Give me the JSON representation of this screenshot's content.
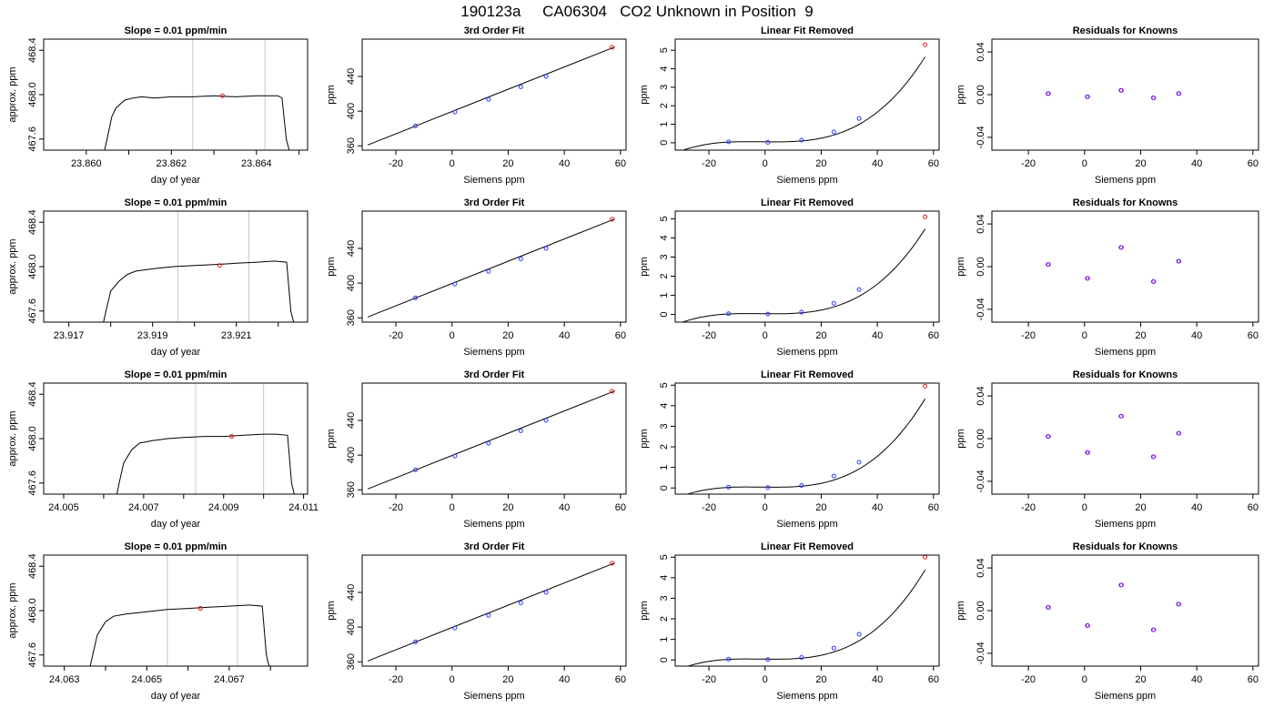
{
  "title": "190123a     CA06304   CO2 Unknown in Position  9",
  "chart_data": [
    {
      "row": 0,
      "col": 0,
      "type": "line",
      "title": "Slope =  0.01  ppm/min",
      "xlabel": "day of year",
      "ylabel": "approx. ppm",
      "xlim": [
        23.859,
        23.8652
      ],
      "ylim": [
        467.5,
        468.5
      ],
      "xticks": [
        23.86,
        23.861,
        23.862,
        23.863,
        23.864,
        23.865
      ],
      "xticklabels": [
        "23.860",
        "",
        "23.862",
        "",
        "23.864",
        ""
      ],
      "yticks": [
        467.6,
        468.0,
        468.4
      ],
      "yticklabels": [
        "467.6",
        "468.0",
        "468.4"
      ],
      "vlines": [
        23.8625,
        23.8642
      ],
      "x": [
        23.8604,
        23.8605,
        23.8606,
        23.8607,
        23.8609,
        23.8611,
        23.8613,
        23.8616,
        23.862,
        23.8625,
        23.863,
        23.8635,
        23.864,
        23.8645,
        23.8646,
        23.8647,
        23.8648
      ],
      "y": [
        467.45,
        467.62,
        467.8,
        467.88,
        467.95,
        467.97,
        467.98,
        467.97,
        467.98,
        467.98,
        467.99,
        467.98,
        467.99,
        467.99,
        467.97,
        467.6,
        467.45
      ],
      "marker": {
        "x": 23.8632,
        "y": 467.99,
        "color": "#e41a1c"
      }
    },
    {
      "row": 0,
      "col": 1,
      "type": "scatter",
      "title": "3rd Order Fit",
      "xlabel": "Siemens ppm",
      "ylabel": "ppm",
      "xlim": [
        -32,
        62
      ],
      "ylim": [
        355,
        483
      ],
      "xticks": [
        -20,
        0,
        20,
        40,
        60
      ],
      "xticklabels": [
        "-20",
        "0",
        "20",
        "40",
        "60"
      ],
      "yticks": [
        360,
        400,
        440
      ],
      "yticklabels": [
        "360",
        "400",
        "440"
      ],
      "points_x": [
        -13,
        1,
        13,
        24.5,
        33.5
      ],
      "points_y": [
        383,
        399,
        413.5,
        428,
        440
      ],
      "extra_point": {
        "x": 57,
        "y": 473.5
      },
      "fit_x": [
        -30,
        58
      ],
      "fit_y": [
        361,
        474
      ]
    },
    {
      "row": 0,
      "col": 2,
      "type": "line",
      "title": "Linear Fit Removed",
      "xlabel": "Siemens ppm",
      "ylabel": "ppm",
      "xlim": [
        -32,
        62
      ],
      "ylim": [
        -0.4,
        5.6
      ],
      "xticks": [
        -20,
        0,
        20,
        40,
        60
      ],
      "xticklabels": [
        "-20",
        "0",
        "20",
        "40",
        "60"
      ],
      "yticks": [
        0,
        1,
        2,
        3,
        4,
        5
      ],
      "yticklabels": [
        "0",
        "1",
        "2",
        "3",
        "4",
        "5"
      ],
      "points_x": [
        -13,
        1,
        13,
        24.5,
        33.5
      ],
      "points_y": [
        0.05,
        0.02,
        0.14,
        0.59,
        1.31
      ],
      "extra_point": {
        "x": 57,
        "y": 5.3
      },
      "curve": {
        "a": 0.05,
        "b": -0.0015,
        "c": 0.0001,
        "d": 2.35e-05
      }
    },
    {
      "row": 0,
      "col": 3,
      "type": "scatter",
      "title": "Residuals for Knowns",
      "xlabel": "Siemens ppm",
      "ylabel": "ppm",
      "xlim": [
        -33,
        62
      ],
      "ylim": [
        -0.052,
        0.052
      ],
      "xticks": [
        -20,
        0,
        20,
        40,
        60
      ],
      "xticklabels": [
        "-20",
        "0",
        "20",
        "40",
        "60"
      ],
      "yticks": [
        -0.04,
        0,
        0.04
      ],
      "yticklabels": [
        "-0.04",
        "0.00",
        "0.04"
      ],
      "points_x": [
        -13,
        1,
        13,
        24.5,
        33.5
      ],
      "points_y": [
        0.001,
        -0.002,
        0.004,
        -0.003,
        0.001
      ]
    },
    {
      "row": 1,
      "col": 0,
      "type": "line",
      "title": "Slope =  0.01  ppm/min",
      "xlabel": "day of year",
      "ylabel": "approx. ppm",
      "xlim": [
        23.9164,
        23.9227
      ],
      "ylim": [
        467.5,
        468.5
      ],
      "xticks": [
        23.917,
        23.918,
        23.919,
        23.92,
        23.921,
        23.922
      ],
      "xticklabels": [
        "23.917",
        "",
        "23.919",
        "",
        "23.921",
        ""
      ],
      "yticks": [
        467.6,
        468.0,
        468.4
      ],
      "yticklabels": [
        "467.6",
        "468.0",
        "468.4"
      ],
      "vlines": [
        23.9196,
        23.9213
      ],
      "x": [
        23.9178,
        23.9179,
        23.918,
        23.9182,
        23.9184,
        23.9186,
        23.919,
        23.9195,
        23.92,
        23.9205,
        23.921,
        23.9215,
        23.9219,
        23.9222,
        23.9223,
        23.9224
      ],
      "y": [
        467.45,
        467.62,
        467.78,
        467.87,
        467.93,
        467.96,
        467.98,
        468.0,
        468.01,
        468.02,
        468.03,
        468.04,
        468.05,
        468.04,
        467.6,
        467.45
      ],
      "marker": {
        "x": 23.9206,
        "y": 468.01,
        "color": "#e41a1c"
      }
    },
    {
      "row": 1,
      "col": 1,
      "type": "scatter",
      "title": "3rd Order Fit",
      "xlabel": "Siemens ppm",
      "ylabel": "ppm",
      "xlim": [
        -32,
        62
      ],
      "ylim": [
        355,
        483
      ],
      "xticks": [
        -20,
        0,
        20,
        40,
        60
      ],
      "xticklabels": [
        "-20",
        "0",
        "20",
        "40",
        "60"
      ],
      "yticks": [
        360,
        400,
        440
      ],
      "yticklabels": [
        "360",
        "400",
        "440"
      ],
      "points_x": [
        -13,
        1,
        13,
        24.5,
        33.5
      ],
      "points_y": [
        383,
        399,
        413.5,
        428,
        440
      ],
      "extra_point": {
        "x": 57,
        "y": 473.5
      },
      "fit_x": [
        -30,
        58
      ],
      "fit_y": [
        361,
        474
      ]
    },
    {
      "row": 1,
      "col": 2,
      "type": "line",
      "title": "Linear Fit Removed",
      "xlabel": "Siemens ppm",
      "ylabel": "ppm",
      "xlim": [
        -32,
        62
      ],
      "ylim": [
        -0.4,
        5.4
      ],
      "xticks": [
        -20,
        0,
        20,
        40,
        60
      ],
      "xticklabels": [
        "-20",
        "0",
        "20",
        "40",
        "60"
      ],
      "yticks": [
        0,
        1,
        2,
        3,
        4,
        5
      ],
      "yticklabels": [
        "0",
        "1",
        "2",
        "3",
        "4",
        "5"
      ],
      "points_x": [
        -13,
        1,
        13,
        24.5,
        33.5
      ],
      "points_y": [
        0.04,
        0.02,
        0.12,
        0.58,
        1.3
      ],
      "extra_point": {
        "x": 57,
        "y": 5.1
      },
      "curve": {
        "a": 0.04,
        "b": -0.0015,
        "c": 0.0001,
        "d": 2.26e-05
      }
    },
    {
      "row": 1,
      "col": 3,
      "type": "scatter",
      "title": "Residuals for Knowns",
      "xlabel": "Siemens ppm",
      "ylabel": "ppm",
      "xlim": [
        -33,
        62
      ],
      "ylim": [
        -0.052,
        0.052
      ],
      "xticks": [
        -20,
        0,
        20,
        40,
        60
      ],
      "xticklabels": [
        "-20",
        "0",
        "20",
        "40",
        "60"
      ],
      "yticks": [
        -0.04,
        0,
        0.04
      ],
      "yticklabels": [
        "-0.04",
        "0.00",
        "0.04"
      ],
      "points_x": [
        -13,
        1,
        13,
        24.5,
        33.5
      ],
      "points_y": [
        0.002,
        -0.011,
        0.018,
        -0.014,
        0.005
      ]
    },
    {
      "row": 2,
      "col": 0,
      "type": "line",
      "title": "Slope =  0.01  ppm/min",
      "xlabel": "day of year",
      "ylabel": "approx. ppm",
      "xlim": [
        24.0045,
        24.0111
      ],
      "ylim": [
        467.5,
        468.5
      ],
      "xticks": [
        24.005,
        24.006,
        24.007,
        24.008,
        24.009,
        24.01,
        24.011
      ],
      "xticklabels": [
        "24.005",
        "",
        "24.007",
        "",
        "24.009",
        "",
        "24.011"
      ],
      "yticks": [
        467.6,
        468.0,
        468.4
      ],
      "yticklabels": [
        "467.6",
        "468.0",
        "468.4"
      ],
      "vlines": [
        24.0083,
        24.01
      ],
      "x": [
        24.0063,
        24.0064,
        24.0065,
        24.0067,
        24.0069,
        24.0072,
        24.0076,
        24.008,
        24.0085,
        24.009,
        24.0095,
        24.01,
        24.0103,
        24.0106,
        24.0107,
        24.0108
      ],
      "y": [
        467.45,
        467.62,
        467.78,
        467.9,
        467.96,
        467.98,
        468.0,
        468.01,
        468.02,
        468.02,
        468.03,
        468.04,
        468.04,
        468.03,
        467.6,
        467.45
      ],
      "marker": {
        "x": 24.0092,
        "y": 468.02,
        "color": "#e41a1c"
      }
    },
    {
      "row": 2,
      "col": 1,
      "type": "scatter",
      "title": "3rd Order Fit",
      "xlabel": "Siemens ppm",
      "ylabel": "ppm",
      "xlim": [
        -32,
        62
      ],
      "ylim": [
        355,
        483
      ],
      "xticks": [
        -20,
        0,
        20,
        40,
        60
      ],
      "xticklabels": [
        "-20",
        "0",
        "20",
        "40",
        "60"
      ],
      "yticks": [
        360,
        400,
        440
      ],
      "yticklabels": [
        "360",
        "400",
        "440"
      ],
      "points_x": [
        -13,
        1,
        13,
        24.5,
        33.5
      ],
      "points_y": [
        383,
        399,
        413.5,
        428,
        440
      ],
      "extra_point": {
        "x": 57,
        "y": 473.5
      },
      "fit_x": [
        -30,
        58
      ],
      "fit_y": [
        361,
        474
      ]
    },
    {
      "row": 2,
      "col": 2,
      "type": "line",
      "title": "Linear Fit Removed",
      "xlabel": "Siemens ppm",
      "ylabel": "ppm",
      "xlim": [
        -32,
        62
      ],
      "ylim": [
        -0.3,
        5.1
      ],
      "xticks": [
        -20,
        0,
        20,
        40,
        60
      ],
      "xticklabels": [
        "-20",
        "0",
        "20",
        "40",
        "60"
      ],
      "yticks": [
        0,
        1,
        2,
        3,
        4,
        5
      ],
      "yticklabels": [
        "0",
        "1",
        "2",
        "3",
        "4",
        "5"
      ],
      "points_x": [
        -13,
        1,
        13,
        24.5,
        33.5
      ],
      "points_y": [
        0.04,
        0.02,
        0.12,
        0.58,
        1.25
      ],
      "extra_point": {
        "x": 57,
        "y": 4.95
      },
      "curve": {
        "a": 0.04,
        "b": -0.0015,
        "c": 0.0001,
        "d": 2.19e-05
      }
    },
    {
      "row": 2,
      "col": 3,
      "type": "scatter",
      "title": "Residuals for Knowns",
      "xlabel": "Siemens ppm",
      "ylabel": "ppm",
      "xlim": [
        -33,
        62
      ],
      "ylim": [
        -0.052,
        0.052
      ],
      "xticks": [
        -20,
        0,
        20,
        40,
        60
      ],
      "xticklabels": [
        "-20",
        "0",
        "20",
        "40",
        "60"
      ],
      "yticks": [
        -0.04,
        0,
        0.04
      ],
      "yticklabels": [
        "-0.04",
        "0.00",
        "0.04"
      ],
      "points_x": [
        -13,
        1,
        13,
        24.5,
        33.5
      ],
      "points_y": [
        0.002,
        -0.013,
        0.021,
        -0.017,
        0.005
      ]
    },
    {
      "row": 3,
      "col": 0,
      "type": "line",
      "title": "Slope =  0.01  ppm/min",
      "xlabel": "day of year",
      "ylabel": "approx. ppm",
      "xlim": [
        24.0625,
        24.0689
      ],
      "ylim": [
        467.5,
        468.5
      ],
      "xticks": [
        24.063,
        24.064,
        24.065,
        24.066,
        24.067,
        24.068
      ],
      "xticklabels": [
        "24.063",
        "",
        "24.065",
        "",
        "24.067",
        ""
      ],
      "yticks": [
        467.6,
        468.0,
        468.4
      ],
      "yticklabels": [
        "467.6",
        "468.0",
        "468.4"
      ],
      "vlines": [
        24.0655,
        24.0672
      ],
      "x": [
        24.0636,
        24.0637,
        24.0638,
        24.064,
        24.0642,
        24.0645,
        24.065,
        24.0655,
        24.066,
        24.0665,
        24.067,
        24.0675,
        24.0678,
        24.0679,
        24.068
      ],
      "y": [
        467.45,
        467.62,
        467.78,
        467.9,
        467.95,
        467.97,
        467.99,
        468.01,
        468.02,
        468.03,
        468.04,
        468.05,
        468.04,
        467.6,
        467.45
      ],
      "marker": {
        "x": 24.0663,
        "y": 468.02,
        "color": "#e41a1c"
      }
    },
    {
      "row": 3,
      "col": 1,
      "type": "scatter",
      "title": "3rd Order Fit",
      "xlabel": "Siemens ppm",
      "ylabel": "ppm",
      "xlim": [
        -32,
        62
      ],
      "ylim": [
        355,
        483
      ],
      "xticks": [
        -20,
        0,
        20,
        40,
        60
      ],
      "xticklabels": [
        "-20",
        "0",
        "20",
        "40",
        "60"
      ],
      "yticks": [
        360,
        400,
        440
      ],
      "yticklabels": [
        "360",
        "400",
        "440"
      ],
      "points_x": [
        -13,
        1,
        13,
        24.5,
        33.5
      ],
      "points_y": [
        383,
        399,
        413.5,
        428,
        440
      ],
      "extra_point": {
        "x": 57,
        "y": 473.5
      },
      "fit_x": [
        -30,
        58
      ],
      "fit_y": [
        361,
        474
      ]
    },
    {
      "row": 3,
      "col": 2,
      "type": "line",
      "title": "Linear Fit Removed",
      "xlabel": "Siemens ppm",
      "ylabel": "ppm",
      "xlim": [
        -32,
        62
      ],
      "ylim": [
        -0.3,
        5.1
      ],
      "xticks": [
        -20,
        0,
        20,
        40,
        60
      ],
      "xticklabels": [
        "-20",
        "0",
        "20",
        "40",
        "60"
      ],
      "yticks": [
        0,
        1,
        2,
        3,
        4,
        5
      ],
      "yticklabels": [
        "0",
        "1",
        "2",
        "3",
        "4",
        "5"
      ],
      "points_x": [
        -13,
        1,
        13,
        24.5,
        33.5
      ],
      "points_y": [
        0.04,
        0.02,
        0.12,
        0.58,
        1.25
      ],
      "extra_point": {
        "x": 57,
        "y": 5.0
      },
      "curve": {
        "a": 0.04,
        "b": -0.0015,
        "c": 0.0001,
        "d": 2.21e-05
      }
    },
    {
      "row": 3,
      "col": 3,
      "type": "scatter",
      "title": "Residuals for Knowns",
      "xlabel": "Siemens ppm",
      "ylabel": "ppm",
      "xlim": [
        -33,
        62
      ],
      "ylim": [
        -0.052,
        0.052
      ],
      "xticks": [
        -20,
        0,
        20,
        40,
        60
      ],
      "xticklabels": [
        "-20",
        "0",
        "20",
        "40",
        "60"
      ],
      "yticks": [
        -0.04,
        0,
        0.04
      ],
      "yticklabels": [
        "-0.04",
        "0.00",
        "0.04"
      ],
      "points_x": [
        -13,
        1,
        13,
        24.5,
        33.5
      ],
      "points_y": [
        0.003,
        -0.014,
        0.024,
        -0.018,
        0.006
      ]
    }
  ]
}
